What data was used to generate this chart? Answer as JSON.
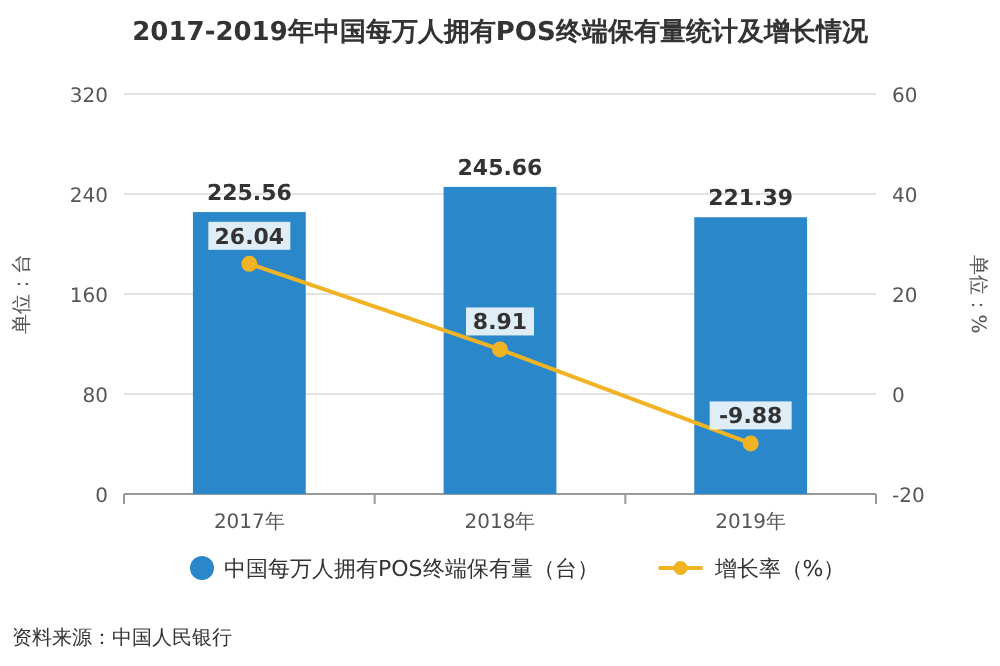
{
  "chart_data": {
    "type": "bar",
    "title": "2017-2019年中国每万人拥有POS终端保有量统计及增长情况",
    "categories": [
      "2017年",
      "2018年",
      "2019年"
    ],
    "series": [
      {
        "name": "中国每万人拥有POS终端保有量（台）",
        "color": "#2a87c9",
        "values": [
          225.56,
          245.66,
          221.39
        ]
      },
      {
        "name": "增长率（%）",
        "type": "line",
        "axis": "y2",
        "color": "#f0b323",
        "marker": "circle",
        "values": [
          26.04,
          8.91,
          -9.88
        ]
      }
    ],
    "ylim": [
      0,
      320
    ],
    "yticks": [
      0,
      80,
      160,
      240,
      320
    ],
    "y2lim": [
      -20,
      60
    ],
    "y2ticks": [
      -20,
      0,
      20,
      40,
      60
    ],
    "ylabel": "单位：台",
    "y2label": "单位：%",
    "grid": "y",
    "legend": "bottom",
    "data_labels": true,
    "annotations": [
      "资料来源：中国人民银行"
    ]
  }
}
